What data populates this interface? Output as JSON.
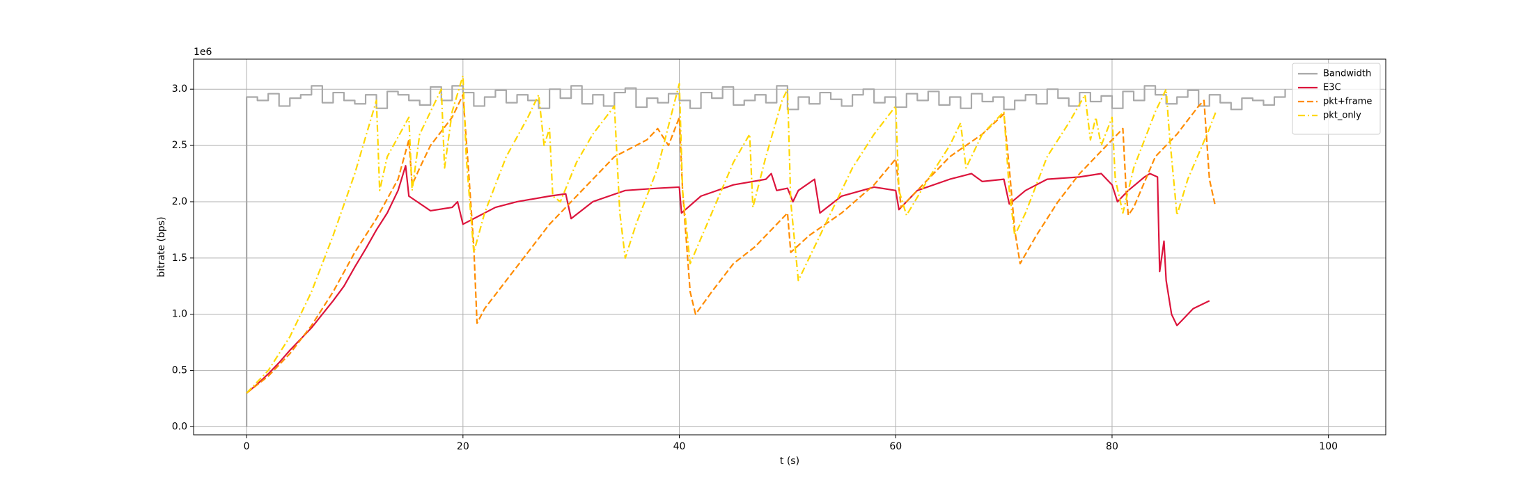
{
  "chart_data": {
    "type": "line",
    "x_label": "t (s)",
    "y_label": "bitrate (bps)",
    "y_offset_label": "1e6",
    "xlim": [
      -4.9,
      105.3
    ],
    "ylim": [
      -71000,
      3267000
    ],
    "xticks": [
      0,
      20,
      40,
      60,
      80,
      100
    ],
    "yticks": [
      {
        "value": 0,
        "label": "0.0"
      },
      {
        "value": 500000,
        "label": "0.5"
      },
      {
        "value": 1000000,
        "label": "1.0"
      },
      {
        "value": 1500000,
        "label": "1.5"
      },
      {
        "value": 2000000,
        "label": "2.0"
      },
      {
        "value": 2500000,
        "label": "2.5"
      },
      {
        "value": 3000000,
        "label": "3.0"
      }
    ],
    "grid": true,
    "legend": "upper right",
    "series": [
      {
        "name": "Bandwidth",
        "color": "#a9a9a9",
        "style": "solid",
        "drawstyle": "steps-post",
        "x": [
          0,
          0,
          1,
          2,
          3,
          4,
          5,
          6,
          7,
          8,
          9,
          10,
          11,
          12,
          13,
          14,
          15,
          16,
          17,
          18,
          19,
          20,
          21,
          22,
          23,
          24,
          25,
          26,
          27,
          28,
          29,
          30,
          31,
          32,
          33,
          34,
          35,
          36,
          37,
          38,
          39,
          40,
          41,
          42,
          43,
          44,
          45,
          46,
          47,
          48,
          49,
          50,
          51,
          52,
          53,
          54,
          55,
          56,
          57,
          58,
          59,
          60,
          61,
          62,
          63,
          64,
          65,
          66,
          67,
          68,
          69,
          70,
          71,
          72,
          73,
          74,
          75,
          76,
          77,
          78,
          79,
          80,
          81,
          82,
          83,
          84,
          85,
          86,
          87,
          88,
          89,
          90,
          91,
          92,
          93,
          94,
          95,
          96
        ],
        "values": [
          0,
          2930000,
          2900000,
          2960000,
          2850000,
          2920000,
          2950000,
          3030000,
          2880000,
          2970000,
          2900000,
          2870000,
          2950000,
          2830000,
          2980000,
          2950000,
          2900000,
          2860000,
          3020000,
          2900000,
          3030000,
          2970000,
          2850000,
          2930000,
          2990000,
          2880000,
          2950000,
          2900000,
          2830000,
          3000000,
          2920000,
          3030000,
          2870000,
          2950000,
          2850000,
          2970000,
          3010000,
          2840000,
          2920000,
          2880000,
          2960000,
          2900000,
          2830000,
          2970000,
          2920000,
          3020000,
          2860000,
          2900000,
          2950000,
          2880000,
          3030000,
          2820000,
          2930000,
          2870000,
          2970000,
          2910000,
          2850000,
          2950000,
          3000000,
          2880000,
          2930000,
          2840000,
          2960000,
          2900000,
          2980000,
          2860000,
          2930000,
          2830000,
          2960000,
          2890000,
          2930000,
          2820000,
          2900000,
          2950000,
          2870000,
          3000000,
          2920000,
          2850000,
          2970000,
          2890000,
          2940000,
          2830000,
          2980000,
          2900000,
          3030000,
          2950000,
          2870000,
          2930000,
          2990000,
          2850000,
          2950000,
          2880000,
          2820000,
          2920000,
          2900000,
          2860000,
          2930000,
          3000000
        ]
      },
      {
        "name": "E3C",
        "color": "#dc143c",
        "style": "solid",
        "x": [
          0,
          1,
          2,
          3,
          4,
          5,
          6,
          7,
          8,
          9,
          10,
          11,
          12,
          13,
          14,
          14.7,
          15,
          17,
          19,
          19.5,
          20,
          21,
          23,
          25,
          28,
          29.5,
          30,
          32,
          35,
          38,
          40,
          40.2,
          42,
          45,
          48,
          48.5,
          49,
          50,
          50.5,
          51,
          52.5,
          53,
          55,
          58,
          60,
          60.3,
          62,
          65,
          67,
          68,
          70,
          70.5,
          72,
          74,
          77,
          79,
          80,
          80.5,
          81.5,
          83,
          83.5,
          84.2,
          84.4,
          84.8,
          85,
          85.5,
          86,
          86.5,
          87.5,
          89
        ],
        "values": [
          300000,
          380000,
          470000,
          570000,
          680000,
          780000,
          880000,
          1000000,
          1120000,
          1250000,
          1420000,
          1580000,
          1750000,
          1900000,
          2100000,
          2320000,
          2050000,
          1920000,
          1950000,
          2000000,
          1800000,
          1850000,
          1950000,
          2000000,
          2050000,
          2070000,
          1850000,
          2000000,
          2100000,
          2120000,
          2130000,
          1900000,
          2050000,
          2150000,
          2200000,
          2250000,
          2100000,
          2120000,
          2000000,
          2100000,
          2200000,
          1900000,
          2050000,
          2130000,
          2100000,
          1930000,
          2100000,
          2200000,
          2250000,
          2180000,
          2200000,
          1980000,
          2100000,
          2200000,
          2220000,
          2250000,
          2150000,
          2000000,
          2100000,
          2220000,
          2250000,
          2220000,
          1380000,
          1650000,
          1300000,
          1000000,
          900000,
          950000,
          1050000,
          1120000
        ]
      },
      {
        "name": "pkt+frame",
        "color": "#ff8c00",
        "style": "dashed",
        "x": [
          0,
          2,
          4,
          6,
          8,
          10,
          12,
          14,
          15,
          15.3,
          16,
          17,
          19,
          20,
          20.5,
          21,
          21.3,
          22,
          24,
          26,
          28,
          30,
          32,
          34,
          37,
          38,
          39,
          40,
          40.3,
          41,
          41.5,
          43,
          45,
          47,
          49,
          50,
          50.3,
          52,
          55,
          58,
          60,
          60.5,
          62,
          65,
          68,
          70,
          70.5,
          71,
          71.5,
          73,
          75,
          77,
          79,
          81,
          81.3,
          81.5,
          82,
          84,
          86,
          88,
          88.5,
          89,
          89.5
        ],
        "values": [
          300000,
          450000,
          650000,
          900000,
          1200000,
          1550000,
          1850000,
          2200000,
          2550000,
          2150000,
          2300000,
          2500000,
          2750000,
          2950000,
          2300000,
          1600000,
          920000,
          1050000,
          1300000,
          1550000,
          1800000,
          2000000,
          2200000,
          2400000,
          2550000,
          2650000,
          2500000,
          2750000,
          2100000,
          1200000,
          1000000,
          1200000,
          1450000,
          1600000,
          1800000,
          1900000,
          1550000,
          1700000,
          1900000,
          2150000,
          2380000,
          1950000,
          2100000,
          2400000,
          2600000,
          2780000,
          2300000,
          1750000,
          1450000,
          1700000,
          2000000,
          2250000,
          2450000,
          2650000,
          2100000,
          1880000,
          1950000,
          2400000,
          2600000,
          2850000,
          2900000,
          2200000,
          1980000
        ]
      },
      {
        "name": "pkt_only",
        "color": "#ffd700",
        "style": "dashdot",
        "x": [
          0,
          2,
          4,
          6,
          8,
          10,
          12,
          12.3,
          13,
          15,
          15.3,
          16,
          18,
          18.3,
          19,
          20,
          20.3,
          21,
          22,
          24,
          26,
          27,
          27.5,
          28,
          28.3,
          29,
          30.5,
          32,
          34,
          34.5,
          35,
          36,
          38,
          40,
          40.3,
          41,
          43,
          45,
          46.5,
          46.8,
          48,
          49.5,
          50,
          50.3,
          51,
          52,
          54,
          56,
          58,
          60,
          60.3,
          61,
          63,
          65,
          66,
          66.5,
          68,
          69,
          70,
          70.5,
          71,
          72,
          74,
          76,
          77.5,
          78,
          78.5,
          79,
          80,
          80.3,
          81,
          82,
          84,
          85,
          85.3,
          86,
          87,
          89,
          89.6
        ],
        "values": [
          300000,
          500000,
          800000,
          1200000,
          1700000,
          2250000,
          2900000,
          2100000,
          2400000,
          2750000,
          2100000,
          2600000,
          3000000,
          2300000,
          2800000,
          3120000,
          2400000,
          1550000,
          1900000,
          2400000,
          2750000,
          2950000,
          2500000,
          2650000,
          2050000,
          2000000,
          2350000,
          2600000,
          2850000,
          1900000,
          1500000,
          1800000,
          2300000,
          3050000,
          2100000,
          1450000,
          1900000,
          2350000,
          2600000,
          1950000,
          2400000,
          2900000,
          3000000,
          2000000,
          1300000,
          1500000,
          1900000,
          2300000,
          2600000,
          2850000,
          2100000,
          1880000,
          2200000,
          2500000,
          2700000,
          2300000,
          2600000,
          2700000,
          2800000,
          2100000,
          1700000,
          1900000,
          2400000,
          2700000,
          2950000,
          2550000,
          2750000,
          2500000,
          2750000,
          2200000,
          1900000,
          2300000,
          2800000,
          3000000,
          2600000,
          1880000,
          2200000,
          2650000,
          2800000
        ]
      }
    ]
  }
}
